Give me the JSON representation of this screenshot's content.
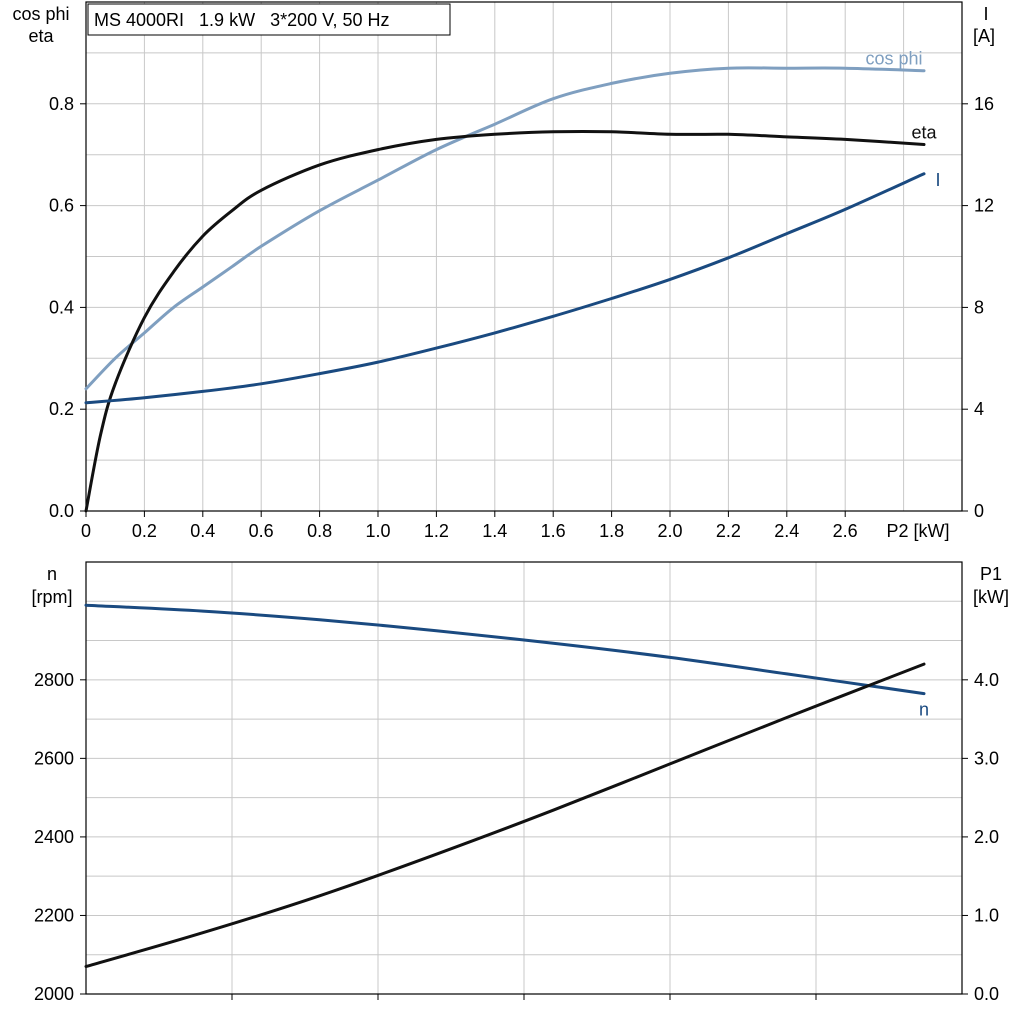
{
  "title": "MS 4000RI   1.9 kW   3*200 V, 50 Hz",
  "colors": {
    "cos_phi": "#7f9fc0",
    "eta": "#111111",
    "I": "#1a4a80",
    "n": "#1a4a80",
    "P1": "#111111",
    "grid": "#c8c8c8"
  },
  "top_left_axis_label": [
    "cos phi",
    "eta"
  ],
  "top_right_axis_label": [
    "I",
    "[A]"
  ],
  "bottom_left_axis_label": [
    "n",
    "[rpm]"
  ],
  "bottom_right_axis_label": [
    "P1",
    "[kW]"
  ],
  "x_axis_label": "P2 [kW]",
  "chart_data": [
    {
      "type": "line",
      "x_label": "P2 [kW]",
      "y_label": "cos phi / eta",
      "y2_label": "I [A]",
      "xlim": [
        0,
        3.0
      ],
      "ylim": [
        0,
        1.0
      ],
      "y2lim": [
        0,
        20
      ],
      "x_ticks": [
        "0",
        "0.2",
        "0.4",
        "0.6",
        "0.8",
        "1.0",
        "1.2",
        "1.4",
        "1.6",
        "1.8",
        "2.0",
        "2.2",
        "2.4",
        "2.6"
      ],
      "y_ticks": [
        "0.0",
        "0.2",
        "0.4",
        "0.6",
        "0.8"
      ],
      "y2_ticks": [
        "0",
        "4",
        "8",
        "12",
        "16"
      ],
      "grid": true,
      "series": [
        {
          "name": "cos phi",
          "axis": "left",
          "x": [
            0,
            0.1,
            0.2,
            0.3,
            0.4,
            0.5,
            0.6,
            0.8,
            1.0,
            1.2,
            1.4,
            1.6,
            1.8,
            2.0,
            2.2,
            2.4,
            2.6,
            2.87
          ],
          "y": [
            0.24,
            0.3,
            0.35,
            0.4,
            0.44,
            0.48,
            0.52,
            0.59,
            0.65,
            0.71,
            0.76,
            0.81,
            0.84,
            0.86,
            0.87,
            0.87,
            0.87,
            0.865
          ]
        },
        {
          "name": "eta",
          "axis": "left",
          "x": [
            0,
            0.05,
            0.1,
            0.2,
            0.3,
            0.4,
            0.5,
            0.6,
            0.8,
            1.0,
            1.2,
            1.4,
            1.6,
            1.8,
            2.0,
            2.2,
            2.4,
            2.6,
            2.87
          ],
          "y": [
            0.0,
            0.15,
            0.25,
            0.38,
            0.47,
            0.54,
            0.59,
            0.63,
            0.68,
            0.71,
            0.73,
            0.74,
            0.745,
            0.745,
            0.74,
            0.74,
            0.735,
            0.73,
            0.72
          ]
        },
        {
          "name": "I",
          "axis": "right",
          "x": [
            0,
            0.2,
            0.4,
            0.6,
            0.8,
            1.0,
            1.2,
            1.4,
            1.6,
            1.8,
            2.0,
            2.2,
            2.4,
            2.6,
            2.87
          ],
          "y": [
            4.25,
            4.45,
            4.7,
            5.0,
            5.4,
            5.85,
            6.4,
            7.0,
            7.65,
            8.35,
            9.1,
            9.95,
            10.9,
            11.85,
            13.25
          ]
        }
      ]
    },
    {
      "type": "line",
      "x_label": "P2 [kW]",
      "y_label": "n [rpm]",
      "y2_label": "P1 [kW]",
      "xlim": [
        0,
        3.0
      ],
      "ylim": [
        2000,
        3100
      ],
      "y2lim": [
        0.0,
        5.5
      ],
      "y_ticks": [
        "2000",
        "2200",
        "2400",
        "2600",
        "2800"
      ],
      "y2_ticks": [
        "0.0",
        "1.0",
        "2.0",
        "3.0",
        "4.0"
      ],
      "grid": true,
      "series": [
        {
          "name": "n",
          "axis": "left",
          "x": [
            0,
            0.4,
            0.8,
            1.2,
            1.6,
            2.0,
            2.4,
            2.87
          ],
          "y": [
            2990,
            2975,
            2953,
            2925,
            2893,
            2857,
            2815,
            2765
          ]
        },
        {
          "name": "P1",
          "axis": "right",
          "x": [
            0,
            0.4,
            0.8,
            1.2,
            1.6,
            2.0,
            2.4,
            2.87
          ],
          "y": [
            0.35,
            0.78,
            1.25,
            1.78,
            2.34,
            2.93,
            3.52,
            4.2
          ]
        }
      ]
    }
  ]
}
